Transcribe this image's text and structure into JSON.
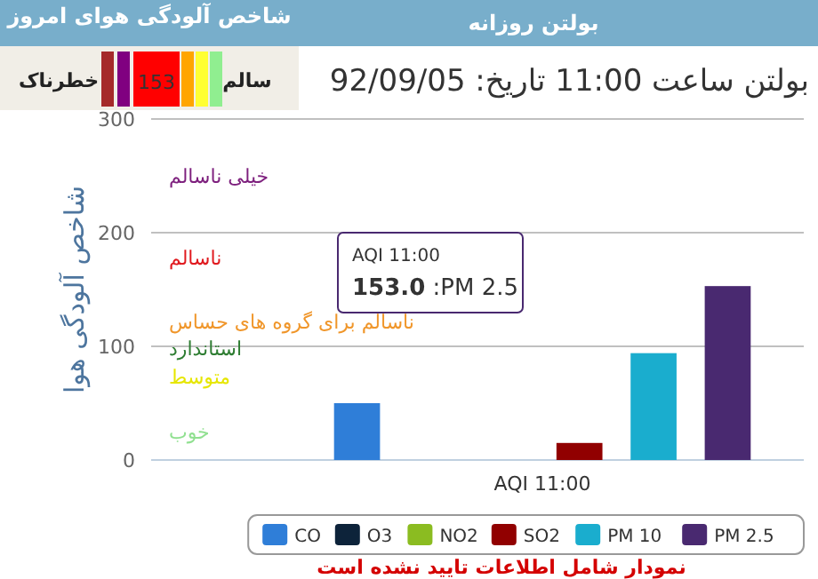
{
  "chart_data": {
    "type": "bar",
    "title": "بولتن ساعت 11:00 تاریخ: 92/09/05",
    "ylabel": "شاخص آلودگی هوا",
    "categories": [
      "AQI 11:00"
    ],
    "series": [
      {
        "name": "CO",
        "color": "#2f7ed8",
        "values": [
          50
        ]
      },
      {
        "name": "O3",
        "color": "#0d233a",
        "values": [
          null
        ]
      },
      {
        "name": "NO2",
        "color": "#8bbc21",
        "values": [
          null
        ]
      },
      {
        "name": "SO2",
        "color": "#910000",
        "values": [
          15
        ]
      },
      {
        "name": "PM 10",
        "color": "#1aadce",
        "values": [
          94
        ]
      },
      {
        "name": "PM 2.5",
        "color": "#492970",
        "values": [
          153
        ]
      }
    ],
    "ylim": [
      0,
      300
    ],
    "yticks": [
      0,
      100,
      200,
      300
    ],
    "grid": "y",
    "legend": "bottom",
    "annotations": [
      "بولتن روزانه",
      "شاخص آلودگی هوای امروز",
      "خطرناک",
      "153",
      "سالم",
      "خیلی ناسالم",
      "ناسالم",
      "ناسالم برای گروه های حساس",
      "استاندارد",
      "متوسط",
      "خوب",
      "153.0 :PM 2.5",
      "نمودار شامل اطلاعات تایید نشده است"
    ]
  }
}
